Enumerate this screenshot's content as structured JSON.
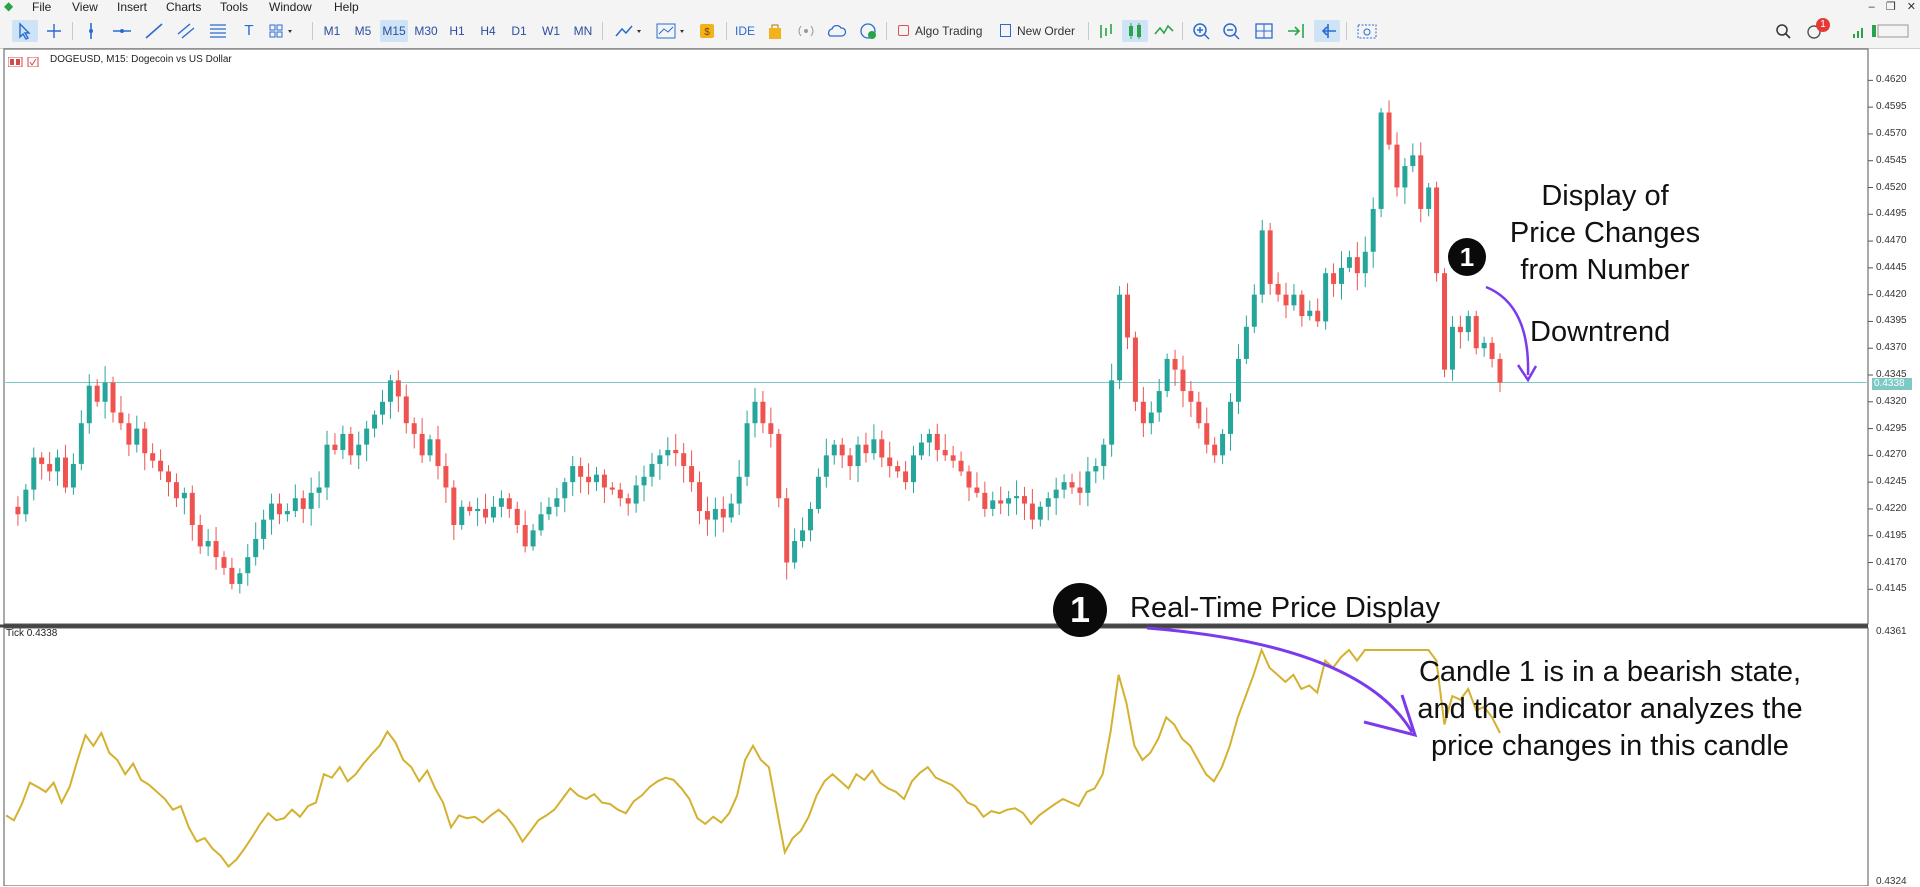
{
  "menu": [
    "File",
    "View",
    "Insert",
    "Charts",
    "Tools",
    "Window",
    "Help"
  ],
  "toolbar": {
    "timeframes": [
      "M1",
      "M5",
      "M15",
      "M30",
      "H1",
      "H4",
      "D1",
      "W1",
      "MN"
    ],
    "active_timeframe": "M15",
    "ide_label": "IDE",
    "algo_trading_label": "Algo Trading",
    "new_order_label": "New Order",
    "notification_count": "1"
  },
  "chart": {
    "title": "DOGEUSD, M15:  Dogecoin vs US Dollar",
    "price_axis": [
      "0.4620",
      "0.4595",
      "0.4570",
      "0.4545",
      "0.4520",
      "0.4495",
      "0.4470",
      "0.4445",
      "0.4420",
      "0.4395",
      "0.4370",
      "0.4345",
      "0.4320",
      "0.4295",
      "0.4270",
      "0.4245",
      "0.4220",
      "0.4195",
      "0.4170",
      "0.4145"
    ],
    "current_price": "0.4338",
    "bull_color": "#26a69a",
    "bear_color": "#ef5350",
    "level_line_color": "#7fc9c4"
  },
  "indicator": {
    "label": "Tick 0.4338",
    "axis_top": "0.4361",
    "axis_bottom": "0.4324",
    "line_color": "#d4b12e"
  },
  "annotations": {
    "badge_number": "1",
    "top_text_lines": [
      "Display of",
      "Price Changes",
      "from Number"
    ],
    "downtrend": "Downtrend",
    "realtime": "Real-Time Price Display",
    "bottom_text_lines": [
      "Candle 1 is in a bearish state,",
      "and the indicator analyzes the",
      "price changes in this candle"
    ],
    "arrow_color": "#7c3aed"
  },
  "chart_data": {
    "type": "candlestick",
    "title": "DOGEUSD, M15:  Dogecoin vs US Dollar",
    "ylim": [
      0.4135,
      0.4625
    ],
    "ohlc_close_path": [
      0.4222,
      0.4215,
      0.4238,
      0.4268,
      0.4262,
      0.4255,
      0.4268,
      0.424,
      0.4262,
      0.43,
      0.4335,
      0.432,
      0.4338,
      0.431,
      0.43,
      0.428,
      0.4295,
      0.4272,
      0.4265,
      0.4255,
      0.4245,
      0.423,
      0.4235,
      0.4205,
      0.4185,
      0.419,
      0.4175,
      0.4165,
      0.415,
      0.416,
      0.4175,
      0.4192,
      0.421,
      0.4225,
      0.4215,
      0.4218,
      0.423,
      0.422,
      0.4235,
      0.424,
      0.428,
      0.4275,
      0.429,
      0.427,
      0.428,
      0.4295,
      0.4308,
      0.432,
      0.434,
      0.4325,
      0.43,
      0.429,
      0.427,
      0.4285,
      0.426,
      0.424,
      0.4205,
      0.4222,
      0.4218,
      0.422,
      0.4212,
      0.4222,
      0.423,
      0.422,
      0.4205,
      0.4185,
      0.42,
      0.4215,
      0.4222,
      0.423,
      0.4245,
      0.426,
      0.425,
      0.4245,
      0.4252,
      0.424,
      0.4238,
      0.423,
      0.4225,
      0.4242,
      0.425,
      0.4262,
      0.427,
      0.4275,
      0.4272,
      0.426,
      0.4245,
      0.4218,
      0.421,
      0.422,
      0.4212,
      0.4225,
      0.425,
      0.43,
      0.432,
      0.43,
      0.429,
      0.423,
      0.417,
      0.419,
      0.42,
      0.422,
      0.425,
      0.427,
      0.428,
      0.427,
      0.426,
      0.428,
      0.4272,
      0.4285,
      0.4268,
      0.426,
      0.4255,
      0.4245,
      0.427,
      0.4282,
      0.429,
      0.4275,
      0.427,
      0.4265,
      0.4255,
      0.424,
      0.4235,
      0.422,
      0.4228,
      0.4225,
      0.423,
      0.4232,
      0.4225,
      0.421,
      0.4222,
      0.423,
      0.4238,
      0.4245,
      0.424,
      0.4235,
      0.4255,
      0.426,
      0.428,
      0.434,
      0.442,
      0.438,
      0.432,
      0.43,
      0.431,
      0.433,
      0.436,
      0.435,
      0.433,
      0.432,
      0.43,
      0.428,
      0.427,
      0.429,
      0.432,
      0.436,
      0.439,
      0.442,
      0.448,
      0.443,
      0.442,
      0.441,
      0.442,
      0.44,
      0.4405,
      0.4395,
      0.444,
      0.443,
      0.4445,
      0.4455,
      0.444,
      0.446,
      0.45,
      0.459,
      0.456,
      0.452,
      0.454,
      0.455,
      0.45,
      0.452,
      0.444,
      0.435,
      0.439,
      0.4385,
      0.44,
      0.437,
      0.4375,
      0.436,
      0.4338
    ]
  }
}
